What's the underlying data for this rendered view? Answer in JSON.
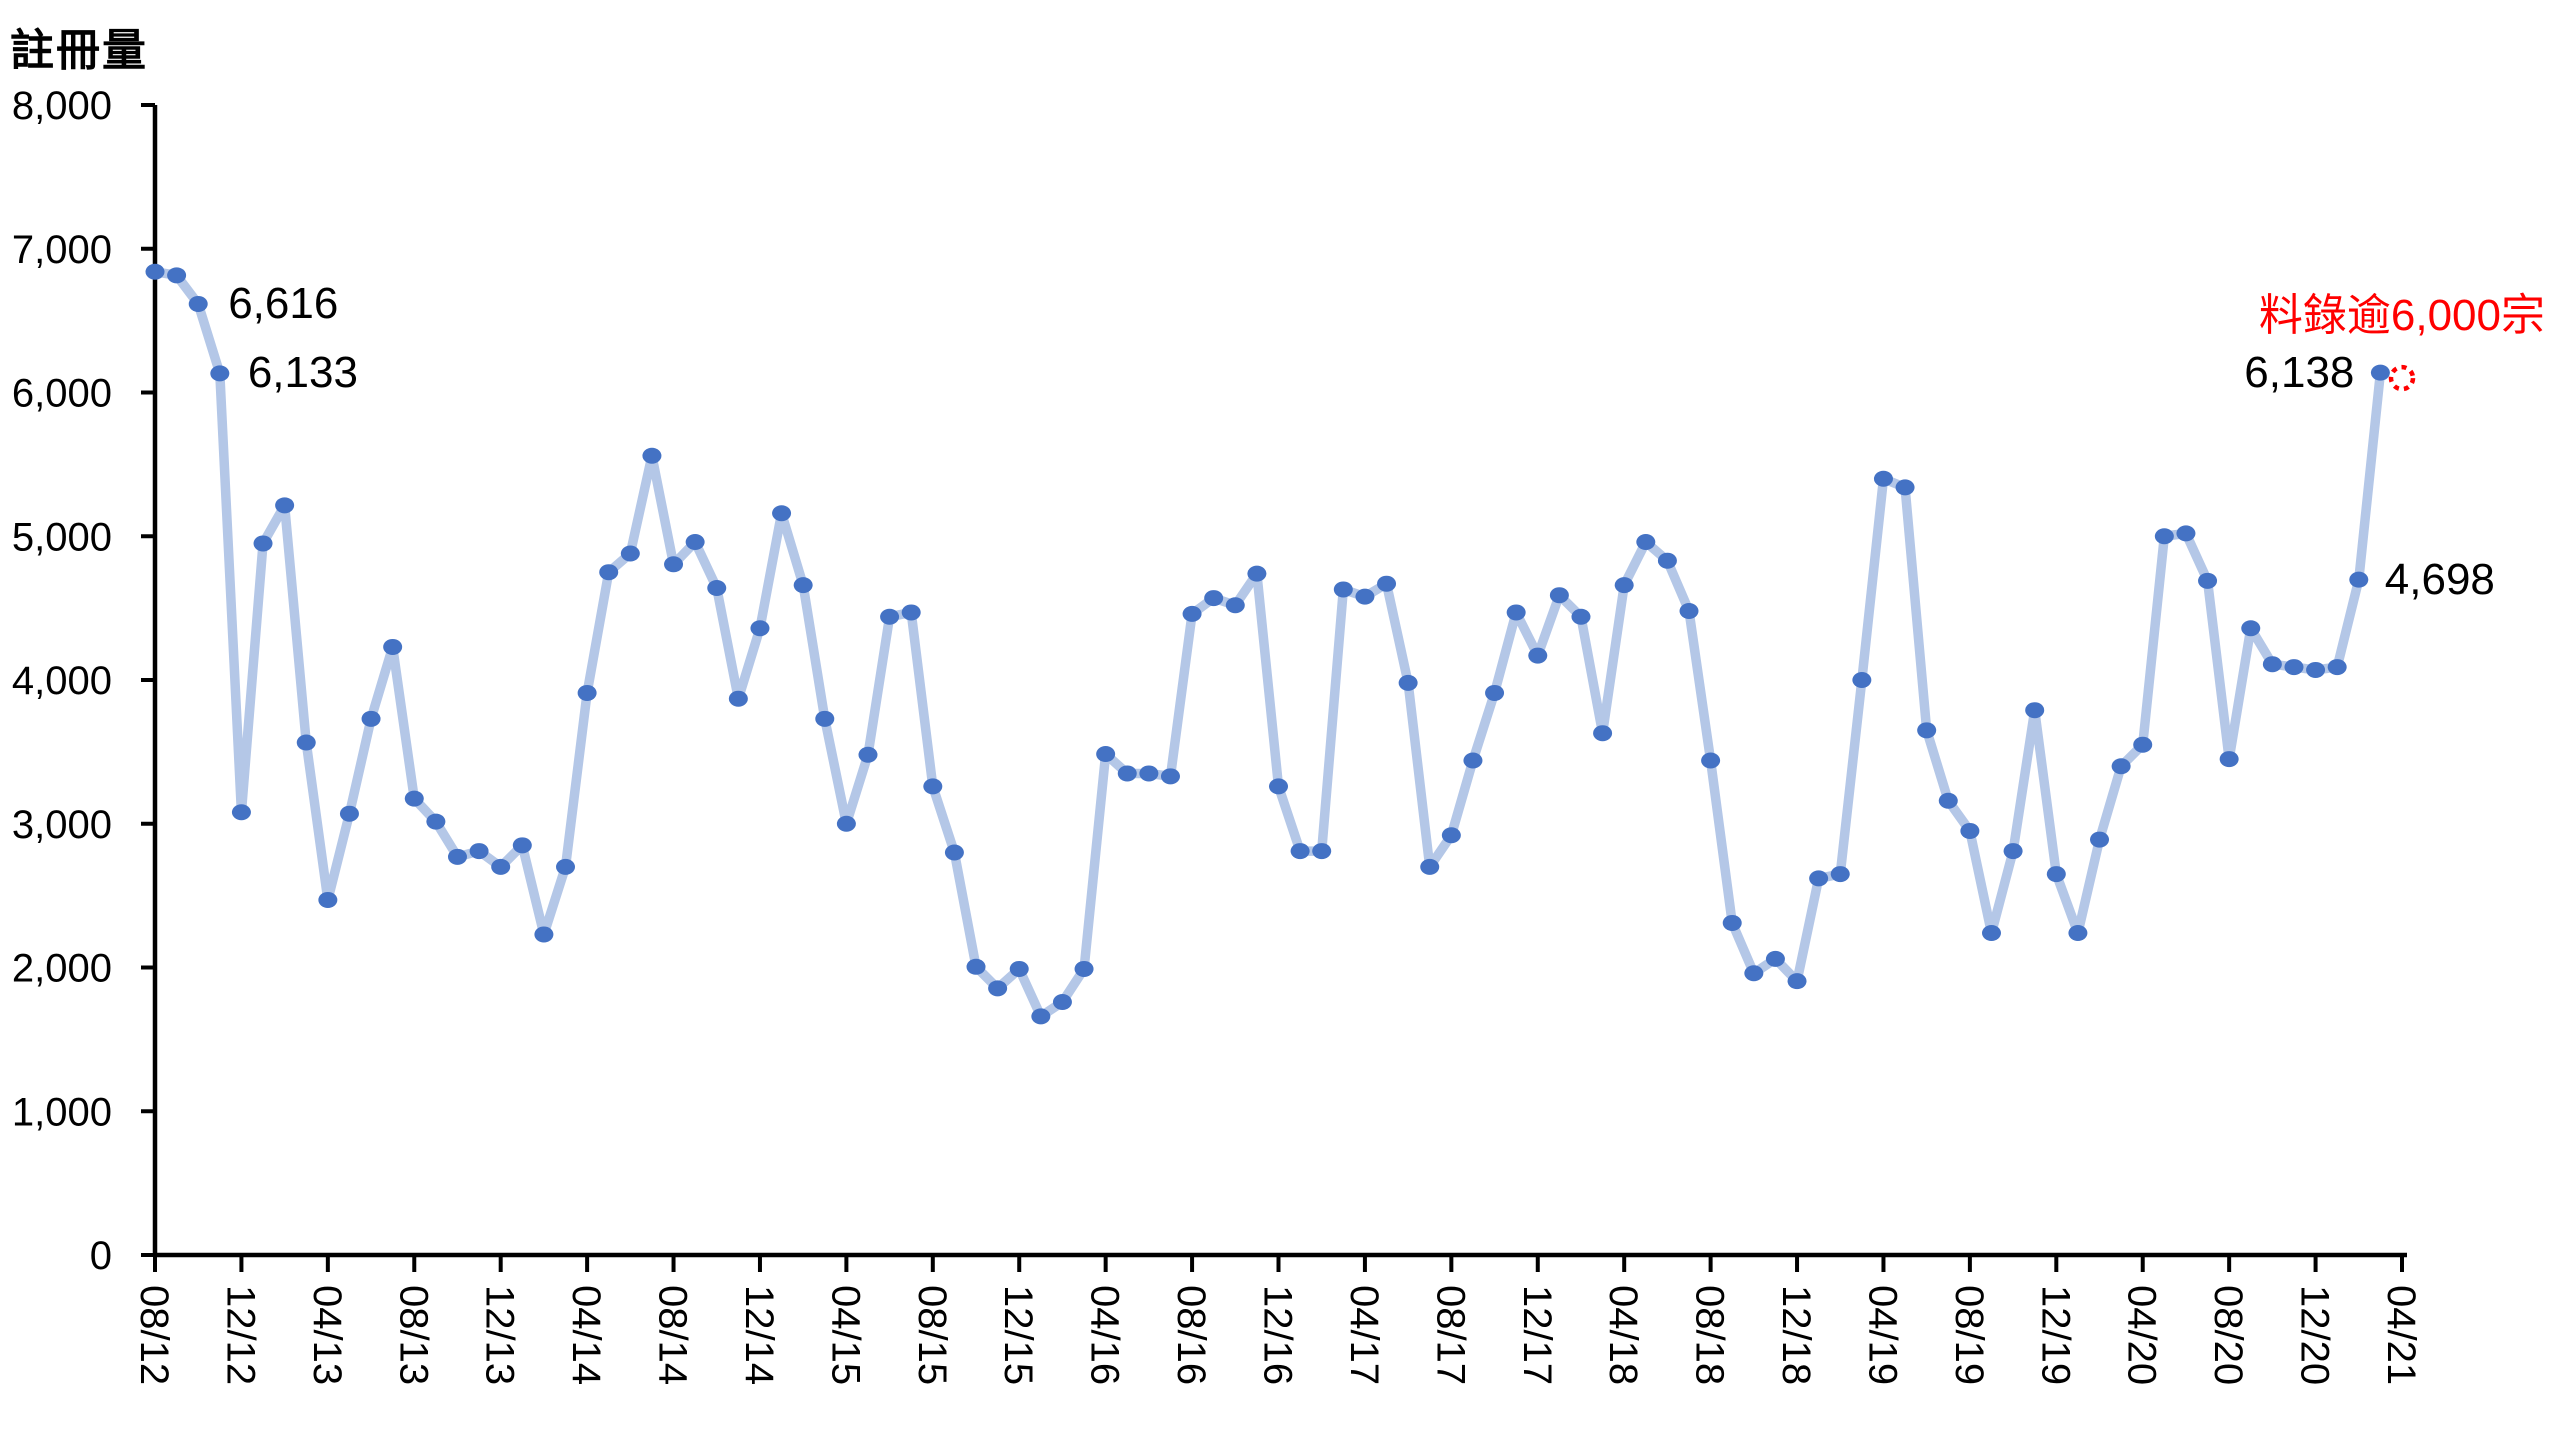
{
  "title": {
    "text": "註冊量"
  },
  "colors": {
    "marker": "#4472C4",
    "line": "#B4C7E7",
    "axis": "#000000",
    "text": "#000000",
    "annotation_red": "#FF0000",
    "background": "#FFFFFF"
  },
  "annotations": {
    "oct_2012": "6,616",
    "nov_2012": "6,133",
    "mar_2021": "6,138",
    "feb_2021": "4,698",
    "apr_2021_forecast_note": "料錄逾6,000宗"
  },
  "chart_data": {
    "type": "line",
    "title": "註冊量",
    "xlabel": "",
    "ylabel": "註冊量",
    "ylim": [
      0,
      8000
    ],
    "y_tick_interval": 1000,
    "y_tick_labels": [
      "0",
      "1,000",
      "2,000",
      "3,000",
      "4,000",
      "5,000",
      "6,000",
      "7,000",
      "8,000"
    ],
    "x_tick_labels": [
      "08/12",
      "12/12",
      "04/13",
      "08/13",
      "12/13",
      "04/14",
      "08/14",
      "12/14",
      "04/15",
      "08/15",
      "12/15",
      "04/16",
      "08/16",
      "12/16",
      "04/17",
      "08/17",
      "12/17",
      "04/18",
      "08/18",
      "12/18",
      "04/19",
      "08/19",
      "12/19",
      "04/20",
      "08/20",
      "12/20",
      "04/21"
    ],
    "x_tick_every_months": 4,
    "grid": false,
    "legend": "none",
    "last_point_is_forecast": true,
    "x": [
      "08/12",
      "09/12",
      "10/12",
      "11/12",
      "12/12",
      "01/13",
      "02/13",
      "03/13",
      "04/13",
      "05/13",
      "06/13",
      "07/13",
      "08/13",
      "09/13",
      "10/13",
      "11/13",
      "12/13",
      "01/14",
      "02/14",
      "03/14",
      "04/14",
      "05/14",
      "06/14",
      "07/14",
      "08/14",
      "09/14",
      "10/14",
      "11/14",
      "12/14",
      "01/15",
      "02/15",
      "03/15",
      "04/15",
      "05/15",
      "06/15",
      "07/15",
      "08/15",
      "09/15",
      "10/15",
      "11/15",
      "12/15",
      "01/16",
      "02/16",
      "03/16",
      "04/16",
      "05/16",
      "06/16",
      "07/16",
      "08/16",
      "09/16",
      "10/16",
      "11/16",
      "12/16",
      "01/17",
      "02/17",
      "03/17",
      "04/17",
      "05/17",
      "06/17",
      "07/17",
      "08/17",
      "09/17",
      "10/17",
      "11/17",
      "12/17",
      "01/18",
      "02/18",
      "03/18",
      "04/18",
      "05/18",
      "06/18",
      "07/18",
      "08/18",
      "09/18",
      "10/18",
      "11/18",
      "12/18",
      "01/19",
      "02/19",
      "03/19",
      "04/19",
      "05/19",
      "06/19",
      "07/19",
      "08/19",
      "09/19",
      "10/19",
      "11/19",
      "12/19",
      "01/20",
      "02/20",
      "03/20",
      "04/20",
      "05/20",
      "06/20",
      "07/20",
      "08/20",
      "09/20",
      "10/20",
      "11/20",
      "12/20",
      "01/21",
      "02/21",
      "03/21",
      "04/21"
    ],
    "values": [
      6840,
      6815,
      6616,
      6133,
      3080,
      4950,
      5215,
      3565,
      2470,
      3070,
      3730,
      4230,
      3175,
      3015,
      2770,
      2810,
      2700,
      2850,
      2230,
      2700,
      3910,
      4750,
      4880,
      5560,
      4805,
      4960,
      4640,
      3870,
      4360,
      5160,
      4660,
      3730,
      3000,
      3480,
      4440,
      4470,
      3260,
      2800,
      2005,
      1855,
      1990,
      1660,
      1760,
      1990,
      3485,
      3350,
      3350,
      3330,
      4460,
      4570,
      4520,
      4740,
      3260,
      2810,
      2810,
      4630,
      4580,
      4670,
      3980,
      2700,
      2920,
      3440,
      3910,
      4470,
      4170,
      4590,
      4440,
      3630,
      4660,
      4960,
      4830,
      4480,
      3440,
      2310,
      1960,
      2060,
      1905,
      2620,
      2650,
      4000,
      5400,
      5340,
      3650,
      3160,
      2950,
      2240,
      2810,
      3790,
      2650,
      2240,
      2890,
      3400,
      3550,
      5000,
      5020,
      4690,
      3450,
      4360,
      4110,
      4090,
      4070,
      4090,
      4698,
      6138,
      6100
    ],
    "annotated_points": [
      {
        "month": "10/12",
        "value": 6616,
        "label": "6,616"
      },
      {
        "month": "11/12",
        "value": 6133,
        "label": "6,133"
      },
      {
        "month": "02/21",
        "value": 4698,
        "label": "4,698"
      },
      {
        "month": "03/21",
        "value": 6138,
        "label": "6,138"
      },
      {
        "month": "04/21",
        "forecast": true,
        "label": "料錄逾6,000宗"
      }
    ]
  }
}
